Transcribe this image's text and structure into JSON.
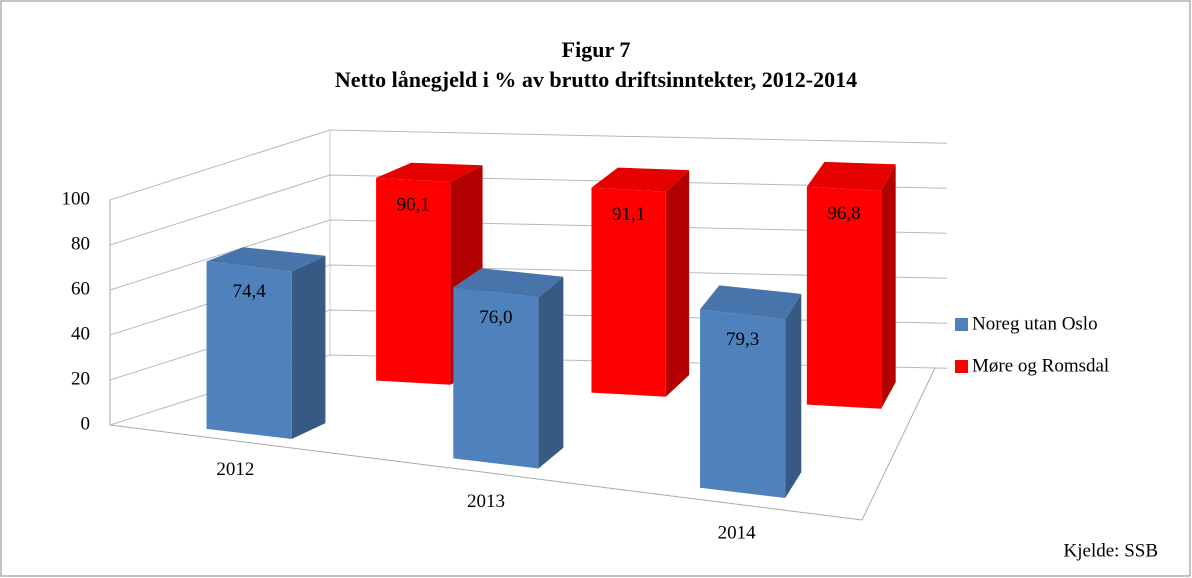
{
  "chart_data": {
    "type": "bar3d",
    "title": "Figur 7",
    "subtitle": "Netto lånegjeld i % av brutto driftsinntekter, 2012-2014",
    "categories": [
      "2012",
      "2013",
      "2014"
    ],
    "series": [
      {
        "name": "Noreg utan Oslo",
        "color": "#4f81bd",
        "values": [
          74.4,
          76.0,
          79.3
        ],
        "value_labels": [
          "74,4",
          "76,0",
          "79,3"
        ]
      },
      {
        "name": "Møre og Romsdal",
        "color": "#ff0000",
        "values": [
          90.1,
          91.1,
          96.8
        ],
        "value_labels": [
          "90,1",
          "91,1",
          "96,8"
        ]
      }
    ],
    "ylim": [
      0,
      100
    ],
    "yticks": [
      0,
      20,
      40,
      60,
      80,
      100
    ],
    "grid": true,
    "legend": "right",
    "source": "Kjelde: SSB"
  }
}
